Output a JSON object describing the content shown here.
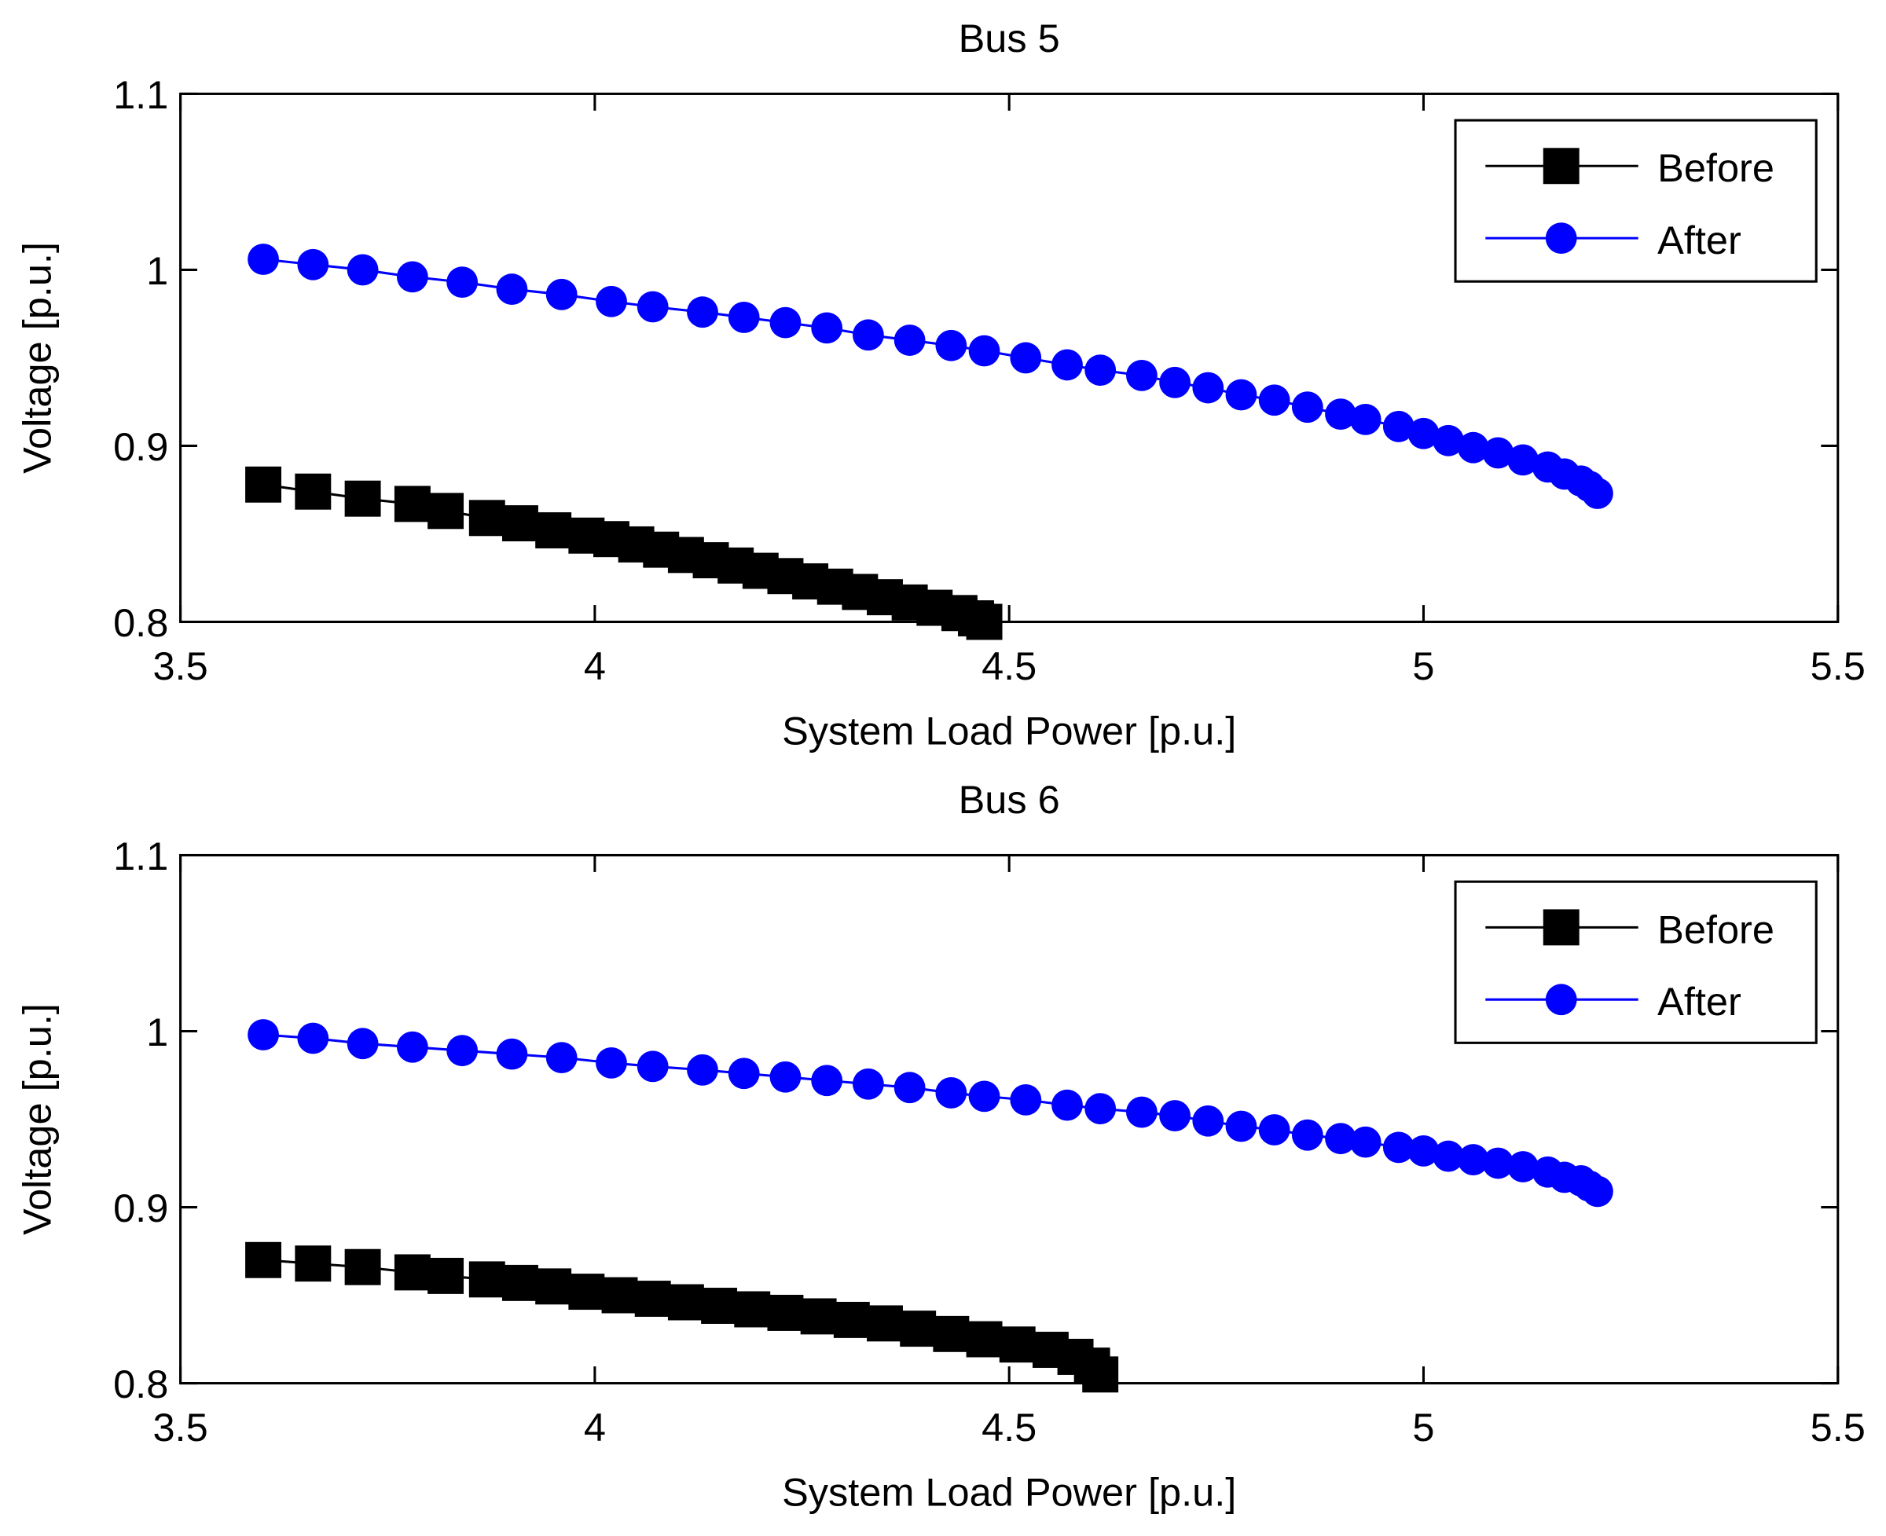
{
  "chart_data": [
    {
      "type": "line",
      "title": "Bus 5",
      "xlabel": "System Load Power [p.u.]",
      "ylabel": "Voltage [p.u.]",
      "xlim": [
        3.5,
        5.5
      ],
      "xticks": [
        3.5,
        4,
        4.5,
        5,
        5.5
      ],
      "ylim": [
        0.8,
        1.1
      ],
      "yticks": [
        0.8,
        0.9,
        1,
        1.1
      ],
      "legend": "upper right",
      "series": [
        {
          "name": "Before",
          "color": "#000000",
          "marker": "square",
          "x": [
            3.6,
            3.66,
            3.72,
            3.78,
            3.82,
            3.87,
            3.91,
            3.95,
            3.99,
            4.02,
            4.05,
            4.08,
            4.11,
            4.14,
            4.17,
            4.2,
            4.23,
            4.26,
            4.29,
            4.32,
            4.35,
            4.38,
            4.41,
            4.44,
            4.46,
            4.47
          ],
          "values": [
            0.878,
            0.874,
            0.87,
            0.867,
            0.863,
            0.859,
            0.856,
            0.852,
            0.849,
            0.847,
            0.844,
            0.841,
            0.838,
            0.835,
            0.832,
            0.829,
            0.826,
            0.823,
            0.82,
            0.817,
            0.814,
            0.811,
            0.808,
            0.805,
            0.802,
            0.8
          ]
        },
        {
          "name": "After",
          "color": "#0000ff",
          "marker": "circle",
          "x": [
            3.6,
            3.66,
            3.72,
            3.78,
            3.84,
            3.9,
            3.96,
            4.02,
            4.07,
            4.13,
            4.18,
            4.23,
            4.28,
            4.33,
            4.38,
            4.43,
            4.47,
            4.52,
            4.57,
            4.61,
            4.66,
            4.7,
            4.74,
            4.78,
            4.82,
            4.86,
            4.9,
            4.93,
            4.97,
            5.0,
            5.03,
            5.06,
            5.09,
            5.12,
            5.15,
            5.17,
            5.19,
            5.2,
            5.21
          ],
          "values": [
            1.006,
            1.003,
            1.0,
            0.996,
            0.993,
            0.989,
            0.986,
            0.982,
            0.979,
            0.976,
            0.973,
            0.97,
            0.967,
            0.963,
            0.96,
            0.957,
            0.954,
            0.95,
            0.946,
            0.943,
            0.94,
            0.936,
            0.933,
            0.929,
            0.926,
            0.922,
            0.918,
            0.915,
            0.911,
            0.907,
            0.903,
            0.899,
            0.896,
            0.892,
            0.888,
            0.884,
            0.88,
            0.877,
            0.873
          ]
        }
      ]
    },
    {
      "type": "line",
      "title": "Bus 6",
      "xlabel": "System Load Power [p.u.]",
      "ylabel": "Voltage [p.u.]",
      "xlim": [
        3.5,
        5.5
      ],
      "xticks": [
        3.5,
        4,
        4.5,
        5,
        5.5
      ],
      "ylim": [
        0.8,
        1.1
      ],
      "yticks": [
        0.8,
        0.9,
        1,
        1.1
      ],
      "legend": "upper right",
      "series": [
        {
          "name": "Before",
          "color": "#000000",
          "marker": "square",
          "x": [
            3.6,
            3.66,
            3.72,
            3.78,
            3.82,
            3.87,
            3.91,
            3.95,
            3.99,
            4.03,
            4.07,
            4.11,
            4.15,
            4.19,
            4.23,
            4.27,
            4.31,
            4.35,
            4.39,
            4.43,
            4.47,
            4.51,
            4.55,
            4.58,
            4.6,
            4.61
          ],
          "values": [
            0.87,
            0.868,
            0.866,
            0.863,
            0.861,
            0.859,
            0.857,
            0.855,
            0.852,
            0.85,
            0.848,
            0.846,
            0.844,
            0.842,
            0.84,
            0.838,
            0.836,
            0.834,
            0.831,
            0.828,
            0.825,
            0.822,
            0.819,
            0.815,
            0.81,
            0.805
          ]
        },
        {
          "name": "After",
          "color": "#0000ff",
          "marker": "circle",
          "x": [
            3.6,
            3.66,
            3.72,
            3.78,
            3.84,
            3.9,
            3.96,
            4.02,
            4.07,
            4.13,
            4.18,
            4.23,
            4.28,
            4.33,
            4.38,
            4.43,
            4.47,
            4.52,
            4.57,
            4.61,
            4.66,
            4.7,
            4.74,
            4.78,
            4.82,
            4.86,
            4.9,
            4.93,
            4.97,
            5.0,
            5.03,
            5.06,
            5.09,
            5.12,
            5.15,
            5.17,
            5.19,
            5.2,
            5.21
          ],
          "values": [
            0.998,
            0.996,
            0.993,
            0.991,
            0.989,
            0.987,
            0.985,
            0.982,
            0.98,
            0.978,
            0.976,
            0.974,
            0.972,
            0.97,
            0.968,
            0.965,
            0.963,
            0.961,
            0.958,
            0.956,
            0.954,
            0.952,
            0.949,
            0.946,
            0.944,
            0.941,
            0.939,
            0.937,
            0.934,
            0.932,
            0.929,
            0.927,
            0.925,
            0.923,
            0.92,
            0.917,
            0.915,
            0.912,
            0.909
          ]
        }
      ]
    }
  ]
}
